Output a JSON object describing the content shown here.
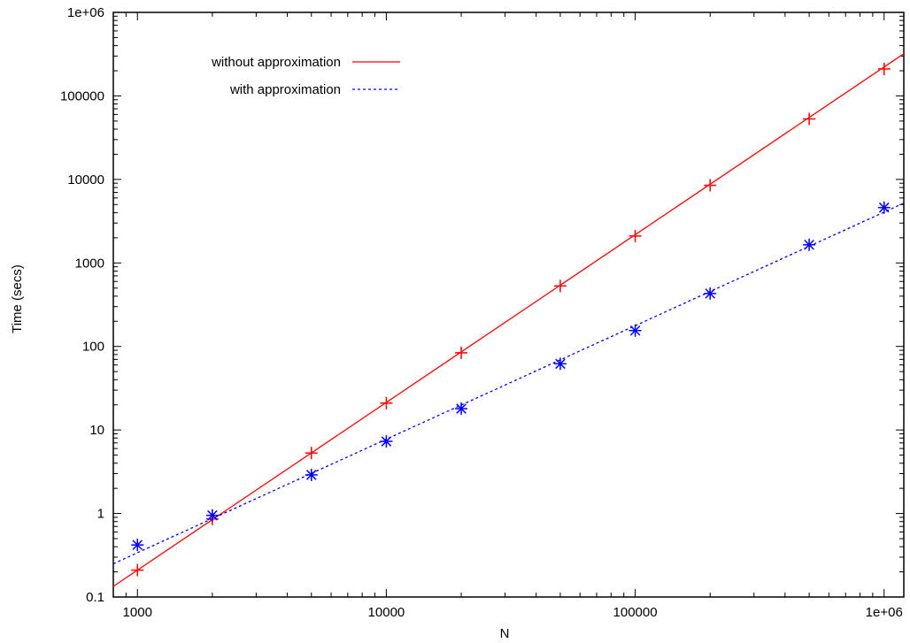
{
  "chart_data": {
    "type": "line",
    "title": "",
    "xlabel": "N",
    "ylabel": "Time (secs)",
    "xscale": "log",
    "yscale": "log",
    "xlim": [
      800,
      1200000
    ],
    "ylim": [
      0.1,
      1000000
    ],
    "x_ticks": [
      {
        "value": 1000,
        "label": "1000"
      },
      {
        "value": 10000,
        "label": "10000"
      },
      {
        "value": 100000,
        "label": "100000"
      },
      {
        "value": 1000000,
        "label": "1e+06"
      }
    ],
    "y_ticks": [
      {
        "value": 0.1,
        "label": "0.1"
      },
      {
        "value": 1,
        "label": "1"
      },
      {
        "value": 10,
        "label": "10"
      },
      {
        "value": 100,
        "label": "100"
      },
      {
        "value": 1000,
        "label": "1000"
      },
      {
        "value": 10000,
        "label": "10000"
      },
      {
        "value": 100000,
        "label": "100000"
      },
      {
        "value": 1000000,
        "label": "1e+06"
      }
    ],
    "grid": false,
    "legend_position": "top-left",
    "series": [
      {
        "name": "without approximation",
        "color": "#ff0000",
        "line_style": "solid",
        "marker": "plus",
        "points": [
          {
            "x": 1000,
            "y": 0.21
          },
          {
            "x": 2000,
            "y": 0.86
          },
          {
            "x": 5000,
            "y": 5.3
          },
          {
            "x": 10000,
            "y": 21
          },
          {
            "x": 20000,
            "y": 84
          },
          {
            "x": 50000,
            "y": 530
          },
          {
            "x": 100000,
            "y": 2100
          },
          {
            "x": 200000,
            "y": 8500
          },
          {
            "x": 500000,
            "y": 53000
          },
          {
            "x": 1000000,
            "y": 210000
          }
        ],
        "fit": {
          "x": [
            800,
            1200000
          ],
          "y": [
            0.134,
            320000
          ]
        }
      },
      {
        "name": "with approximation",
        "color": "#0000ff",
        "line_style": "dotted",
        "marker": "star",
        "points": [
          {
            "x": 1000,
            "y": 0.42
          },
          {
            "x": 2000,
            "y": 0.95
          },
          {
            "x": 5000,
            "y": 2.9
          },
          {
            "x": 10000,
            "y": 7.3
          },
          {
            "x": 20000,
            "y": 18
          },
          {
            "x": 50000,
            "y": 62
          },
          {
            "x": 100000,
            "y": 155
          },
          {
            "x": 200000,
            "y": 430
          },
          {
            "x": 500000,
            "y": 1650
          },
          {
            "x": 1000000,
            "y": 4600
          }
        ],
        "fit": {
          "x": [
            800,
            1200000
          ],
          "y": [
            0.25,
            5200
          ]
        }
      }
    ]
  }
}
